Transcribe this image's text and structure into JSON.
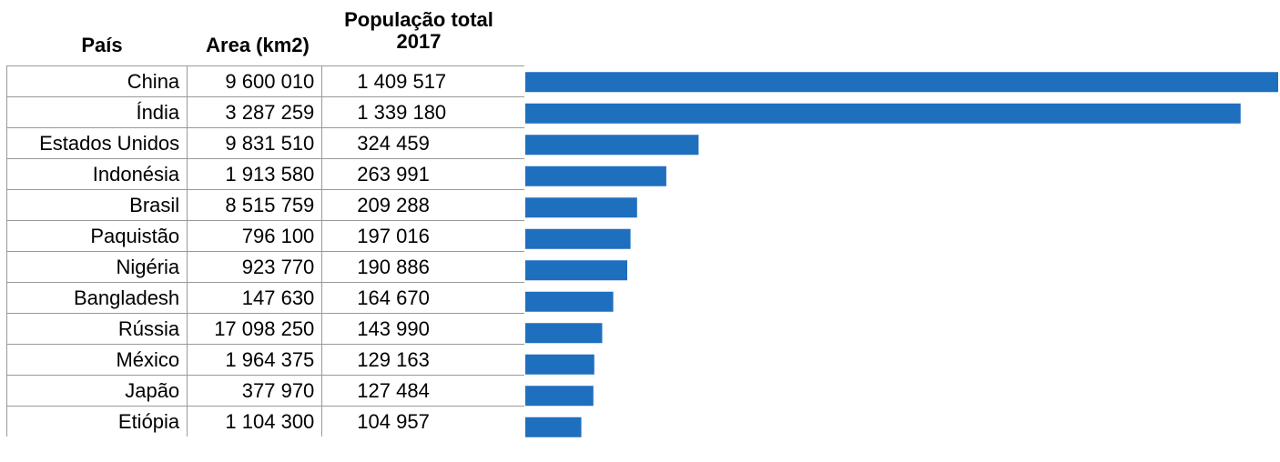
{
  "headers": {
    "country": "País",
    "area": "Area (km2)",
    "population_line1": "População total",
    "population_line2": "2017"
  },
  "rows": [
    {
      "country": "China",
      "area": "9 600 010",
      "population": "1 409 517"
    },
    {
      "country": "Índia",
      "area": "3 287 259",
      "population": "1 339 180"
    },
    {
      "country": "Estados Unidos",
      "area": "9 831 510",
      "population": "324 459"
    },
    {
      "country": "Indonésia",
      "area": "1 913 580",
      "population": "263 991"
    },
    {
      "country": "Brasil",
      "area": "8 515 759",
      "population": "209 288"
    },
    {
      "country": "Paquistão",
      "area": "796 100",
      "population": "197 016"
    },
    {
      "country": "Nigéria",
      "area": "923 770",
      "population": "190 886"
    },
    {
      "country": "Bangladesh",
      "area": "147 630",
      "population": "164 670"
    },
    {
      "country": "Rússia",
      "area": "17 098 250",
      "population": "143 990"
    },
    {
      "country": "México",
      "area": "1 964 375",
      "population": "129 163"
    },
    {
      "country": "Japão",
      "area": "377 970",
      "population": "127 484"
    },
    {
      "country": "Etiópia",
      "area": "1 104 300",
      "population": "104 957"
    }
  ],
  "chart_data": {
    "type": "bar",
    "orientation": "horizontal",
    "categories": [
      "China",
      "Índia",
      "Estados Unidos",
      "Indonésia",
      "Brasil",
      "Paquistão",
      "Nigéria",
      "Bangladesh",
      "Rússia",
      "México",
      "Japão",
      "Etiópia"
    ],
    "values": [
      1409517,
      1339180,
      324459,
      263991,
      209288,
      197016,
      190886,
      164670,
      143990,
      129163,
      127484,
      104957
    ],
    "xlim": [
      0,
      1409517
    ],
    "bar_color": "#1f6fbf",
    "grid": false,
    "legend": false
  }
}
